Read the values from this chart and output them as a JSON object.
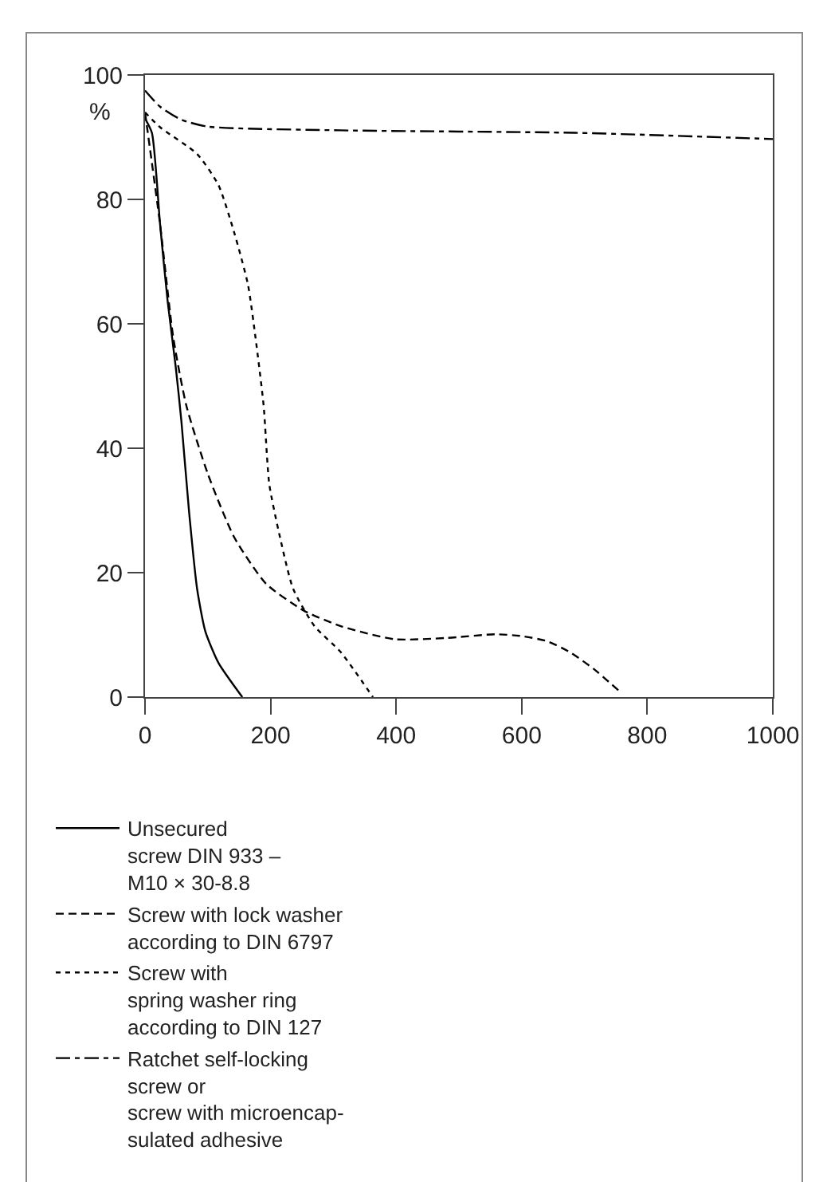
{
  "chart_data": {
    "type": "line",
    "ylabel": "%",
    "xlim": [
      0,
      1000
    ],
    "ylim": [
      0,
      100
    ],
    "xticks": [
      0,
      200,
      400,
      600,
      800,
      1000
    ],
    "yticks": [
      0,
      20,
      40,
      60,
      80,
      100
    ],
    "grid": false,
    "legend": "bottom",
    "marker": "none",
    "series": [
      {
        "name": "Unsecured\nscrew DIN 933 –\nM10 × 30-8.8",
        "color": "#000000",
        "line_style": "solid",
        "x": [
          0,
          11,
          24,
          36,
          49,
          58,
          70,
          83,
          96,
          117,
          155
        ],
        "values": [
          93,
          90.7,
          76,
          63.7,
          53,
          44.3,
          30,
          17.4,
          10.6,
          5.5,
          0
        ]
      },
      {
        "name": "Screw with lock washer\naccording to DIN 6797",
        "color": "#000000",
        "line_style": "dashed",
        "x": [
          0,
          24,
          45,
          66,
          100,
          142,
          193,
          253,
          312,
          397,
          480,
          558,
          600,
          640,
          677,
          715,
          755
        ],
        "values": [
          94,
          76,
          57.8,
          46.8,
          35.9,
          25.7,
          18.2,
          13.9,
          11.4,
          9.3,
          9.5,
          10.1,
          9.8,
          9,
          7.2,
          4.5,
          1
        ]
      },
      {
        "name": "Screw with\nspring washer ring\naccording to DIN 127",
        "color": "#000000",
        "line_style": "dotted",
        "x": [
          0,
          24,
          83,
          117,
          142,
          164,
          176,
          189,
          198,
          215,
          236,
          270,
          312,
          363
        ],
        "values": [
          94,
          91.6,
          87.3,
          82.3,
          74.7,
          66.3,
          57.8,
          46.8,
          34.2,
          25.7,
          17.4,
          11.4,
          7.2,
          0
        ]
      },
      {
        "name": "Ratchet self-locking\nscrew or\nscrew with microencap-\nsulated adhesive",
        "color": "#000000",
        "line_style": "dashdot",
        "x": [
          0,
          24,
          58,
          100,
          312,
          685,
          1000
        ],
        "values": [
          97.5,
          94.9,
          92.8,
          91.7,
          91.1,
          90.7,
          89.7
        ]
      }
    ]
  }
}
